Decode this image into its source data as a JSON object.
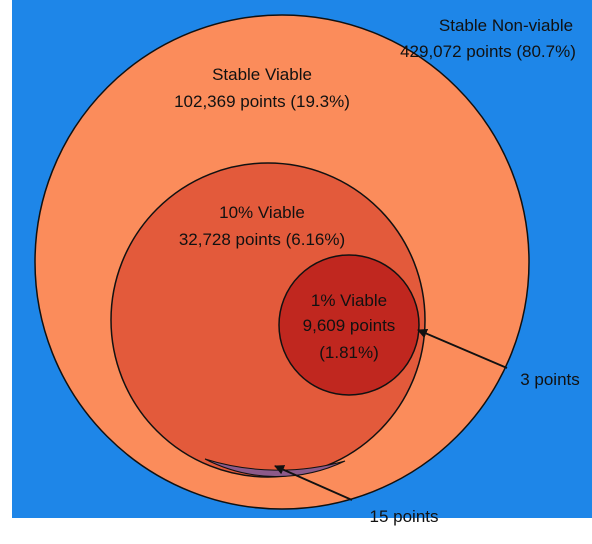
{
  "colors": {
    "background": "#1e86e8",
    "stable_viable": "#fb8c5b",
    "viable_10": "#e35a3b",
    "viable_1": "#c0271f",
    "overlap_sliver": "#8c5a8a",
    "outline": "#111111"
  },
  "regions": {
    "stable_nonviable": {
      "title": "Stable Non-viable",
      "count": "429,072 points (80.7%)"
    },
    "stable_viable": {
      "title": "Stable Viable",
      "count": "102,369 points (19.3%)"
    },
    "viable_10": {
      "title": "10% Viable",
      "count": "32,728 points (6.16%)"
    },
    "viable_1": {
      "title": "1% Viable",
      "count": "9,609 points",
      "pct": "(1.81%)"
    }
  },
  "callouts": {
    "outside_1pct": "3 points",
    "outside_stable": "15 points"
  }
}
